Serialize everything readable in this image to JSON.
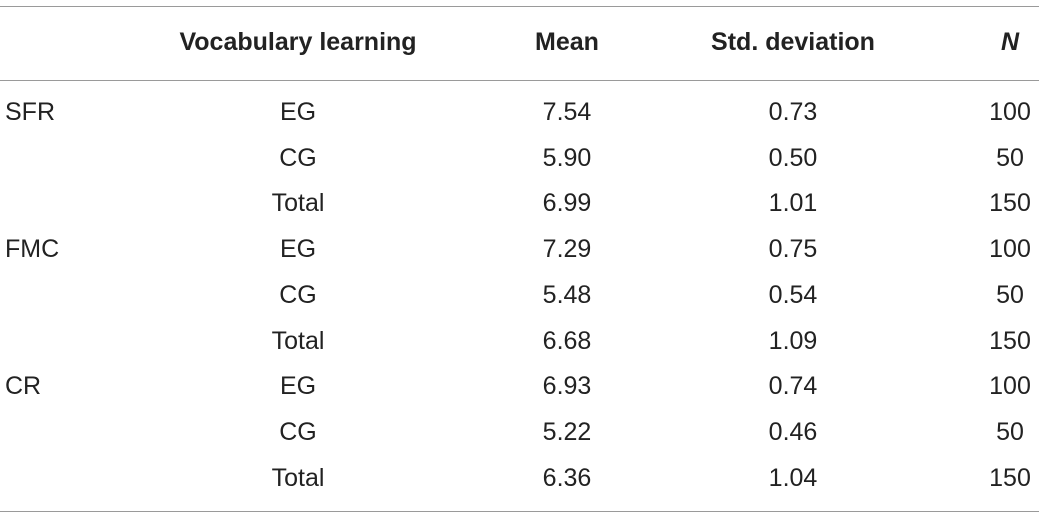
{
  "table": {
    "header": [
      "Vocabulary learning",
      "Mean",
      "Std. deviation",
      "N"
    ],
    "groups": [
      {
        "label": "SFR",
        "rows": [
          [
            "EG",
            "7.54",
            "0.73",
            "100"
          ],
          [
            "CG",
            "5.90",
            "0.50",
            "50"
          ],
          [
            "Total",
            "6.99",
            "1.01",
            "150"
          ]
        ]
      },
      {
        "label": "FMC",
        "rows": [
          [
            "EG",
            "7.29",
            "0.75",
            "100"
          ],
          [
            "CG",
            "5.48",
            "0.54",
            "50"
          ],
          [
            "Total",
            "6.68",
            "1.09",
            "150"
          ]
        ]
      },
      {
        "label": "CR",
        "rows": [
          [
            "EG",
            "6.93",
            "0.74",
            "100"
          ],
          [
            "CG",
            "5.22",
            "0.46",
            "50"
          ],
          [
            "Total",
            "6.36",
            "1.04",
            "150"
          ]
        ]
      }
    ]
  }
}
